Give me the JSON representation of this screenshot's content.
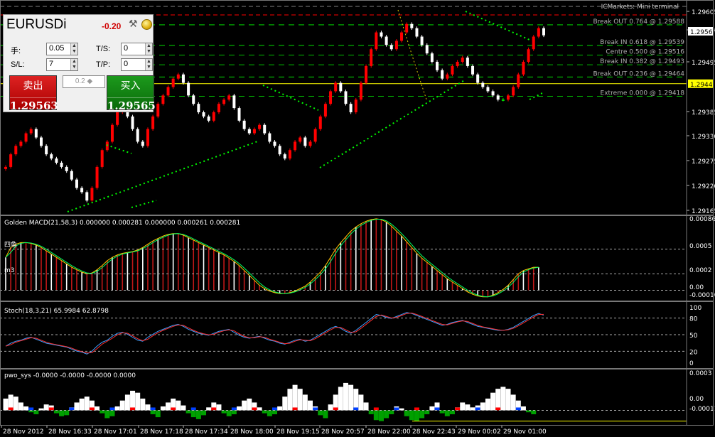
{
  "symbol": "EURUSDi",
  "terminal": "ICMarkets: Mini terminal",
  "trade_panel": {
    "daily_change": "-0.20",
    "lots_label": "手:",
    "lots": "0.05",
    "sl_label": "S/L:",
    "sl": "7",
    "ts_label": "T/S:",
    "ts": "0",
    "tp_label": "T/P:",
    "tp": "0",
    "quick_lots": "0.2",
    "sell_label": "卖出",
    "buy_label": "买入",
    "bid": "1.29563",
    "ask": "1.29565",
    "bid_pip": "63",
    "ask_pip": "65"
  },
  "colors": {
    "bull_candle": "#ff0000",
    "bear_candle": "#ffffff",
    "doji_candle": "#00ff00",
    "fib_line": "#00ff00",
    "resistance_line": "#ff0000",
    "trendline": "#00ff00",
    "bid_line": "#ffff00",
    "panel_divider": "#ffffff"
  },
  "chart_data": [
    {
      "type": "candlestick",
      "symbol": "EURUSDi",
      "price_axis_ticks": [
        "1.29605",
        "1.29550",
        "1.29495",
        "1.29385",
        "1.29330",
        "1.29275",
        "1.29220",
        "1.29165"
      ],
      "bid_marker": "1.29563",
      "current_line": "1.29448",
      "fib_levels": [
        {
          "label": "Break OUT 0.764 @ 1.29588",
          "price": 1.29588
        },
        {
          "label": "Break IN 0.618 @ 1.29539",
          "price": 1.29539
        },
        {
          "label": "Centre 0.500 @ 1.29516",
          "price": 1.29516
        },
        {
          "label": "Break IN 0.382 @ 1.29493",
          "price": 1.29493
        },
        {
          "label": "Break OUT 0.236 @ 1.29464",
          "price": 1.29464
        },
        {
          "label": "Extreme 0.000 @ 1.29418",
          "price": 1.29418
        }
      ],
      "time_labels": [
        "28 Nov 2012",
        "28 Nov 16:33",
        "28 Nov 17:01",
        "28 Nov 17:18",
        "28 Nov 17:34",
        "28 Nov 18:00",
        "28 Nov 19:15",
        "28 Nov 20:57",
        "28 Nov 22:00",
        "28 Nov 22:43",
        "29 Nov 00:02",
        "29 Nov 01:00"
      ],
      "close": [
        1.2925,
        1.2928,
        1.293,
        1.2931,
        1.2933,
        1.2934,
        1.2932,
        1.293,
        1.2928,
        1.2927,
        1.2926,
        1.2925,
        1.2924,
        1.2922,
        1.292,
        1.2919,
        1.2917,
        1.292,
        1.2925,
        1.2929,
        1.2931,
        1.2935,
        1.2938,
        1.2939,
        1.2937,
        1.2934,
        1.2931,
        1.293,
        1.2934,
        1.2937,
        1.294,
        1.2942,
        1.2944,
        1.2946,
        1.2947,
        1.2945,
        1.2942,
        1.294,
        1.2938,
        1.2937,
        1.2936,
        1.2938,
        1.294,
        1.2941,
        1.2942,
        1.2939,
        1.2936,
        1.2934,
        1.2933,
        1.2934,
        1.2935,
        1.2933,
        1.2931,
        1.293,
        1.2928,
        1.2927,
        1.2929,
        1.2931,
        1.2932,
        1.293,
        1.2931,
        1.2934,
        1.2937,
        1.294,
        1.2943,
        1.2945,
        1.2943,
        1.294,
        1.2938,
        1.2941,
        1.2945,
        1.2949,
        1.2953,
        1.2957,
        1.2956,
        1.2954,
        1.2953,
        1.2955,
        1.2957,
        1.2959,
        1.2958,
        1.2956,
        1.2954,
        1.2952,
        1.295,
        1.2948,
        1.2946,
        1.2947,
        1.2949,
        1.295,
        1.2951,
        1.2949,
        1.2947,
        1.2945,
        1.2944,
        1.2943,
        1.2942,
        1.2941,
        1.2941,
        1.2942,
        1.2944,
        1.2947,
        1.295,
        1.2953,
        1.2956,
        1.2958,
        1.29563
      ],
      "stoch": {
        "name": "Stoch(18,3,21)",
        "main": "65.9984",
        "signal": "62.8798",
        "levels": [
          "80",
          "50",
          "20"
        ],
        "ticks": [
          "100",
          "80",
          "50",
          "20",
          "0"
        ]
      }
    },
    {
      "type": "bar",
      "name": "Golden MACD(21,58,3)",
      "header_values": [
        "0.000000",
        "0.000281",
        "0.000000",
        "0.000261",
        "0.000281"
      ],
      "left_labels": [
        "四鱼",
        "m3"
      ],
      "axis_ticks": [
        "0.000869",
        "0.0005",
        "0.0002",
        "0.00",
        "-0.00010"
      ],
      "values": [
        0.0004,
        0.00052,
        0.00056,
        0.00058,
        0.00058,
        0.00057,
        0.00055,
        0.00052,
        0.00048,
        0.00044,
        0.0004,
        0.00036,
        0.00032,
        0.00028,
        0.00025,
        0.00022,
        0.0002,
        0.00021,
        0.00025,
        0.0003,
        0.00036,
        0.0004,
        0.00043,
        0.00045,
        0.00046,
        0.00047,
        0.00049,
        0.00052,
        0.00056,
        0.0006,
        0.00063,
        0.00066,
        0.00068,
        0.00069,
        0.00069,
        0.00067,
        0.00064,
        0.00061,
        0.00058,
        0.00055,
        0.00052,
        0.00049,
        0.00046,
        0.00043,
        0.00039,
        0.00035,
        0.0003,
        0.00024,
        0.00018,
        0.00012,
        6e-05,
        2e-05,
        -1e-05,
        -3e-05,
        -4e-05,
        -4e-05,
        -3e-05,
        -1e-05,
        2e-05,
        5e-05,
        0.0001,
        0.00016,
        0.00022,
        0.0003,
        0.0004,
        0.0005,
        0.00058,
        0.00065,
        0.00072,
        0.00077,
        0.00081,
        0.00084,
        0.00086,
        0.00087,
        0.00086,
        0.00083,
        0.00078,
        0.00072,
        0.00066,
        0.00059,
        0.00052,
        0.00045,
        0.00039,
        0.00034,
        0.00029,
        0.00024,
        0.00019,
        0.00014,
        0.0001,
        6e-05,
        2e-05,
        -2e-05,
        -5e-05,
        -7e-05,
        -8e-05,
        -8e-05,
        -6e-05,
        -3e-05,
        1e-05,
        6e-05,
        0.00013,
        0.0002,
        0.00024,
        0.00026,
        0.00028,
        0.00028
      ],
      "ylim": [
        -0.0001,
        0.000869
      ]
    },
    {
      "type": "bar",
      "name": "pwo_sys",
      "header_values": [
        "-0.0000",
        "-0.0000",
        "-0.0000",
        "0.0000"
      ],
      "axis_ticks": [
        "0.0003",
        "0.00",
        "-0.00011"
      ],
      "values": [
        0.00012,
        0.00016,
        0.00014,
        8e-05,
        4e-05,
        -2e-05,
        -4e-05,
        2e-05,
        6e-05,
        5e-05,
        -3e-05,
        -6e-05,
        -5e-05,
        3e-05,
        8e-05,
        0.00012,
        0.00014,
        0.0001,
        4e-05,
        -3e-05,
        -8e-05,
        -6e-05,
        4e-05,
        0.0001,
        0.00016,
        0.0002,
        0.00018,
        0.00012,
        6e-05,
        -4e-05,
        -7e-05,
        4e-05,
        8e-05,
        0.00012,
        0.0001,
        5e-05,
        -3e-05,
        -7e-05,
        -9e-05,
        -5e-05,
        3e-05,
        8e-05,
        6e-05,
        -3e-05,
        -6e-05,
        -4e-05,
        4e-05,
        0.0001,
        0.00012,
        8e-05,
        3e-05,
        -3e-05,
        -6e-05,
        -4e-05,
        4e-05,
        0.00014,
        0.00022,
        0.00026,
        0.00022,
        0.00016,
        0.0001,
        4e-05,
        -5e-05,
        -8e-05,
        6e-05,
        0.00016,
        0.00024,
        0.00028,
        0.00026,
        0.00022,
        0.00016,
        8e-05,
        -4e-05,
        -0.0001,
        -0.00011,
        -8e-05,
        -4e-05,
        4e-05,
        2e-05,
        -6e-05,
        -0.0001,
        -0.00011,
        -8e-05,
        -4e-05,
        4e-05,
        8e-05,
        -3e-05,
        -6e-05,
        -4e-05,
        3e-05,
        8e-05,
        6e-05,
        3e-05,
        5e-05,
        8e-05,
        0.00012,
        0.00018,
        0.00022,
        0.00024,
        0.00022,
        0.00016,
        0.0001,
        4e-05,
        -2e-05,
        -4e-05
      ],
      "ylim": [
        -0.00012,
        0.00033
      ]
    }
  ]
}
